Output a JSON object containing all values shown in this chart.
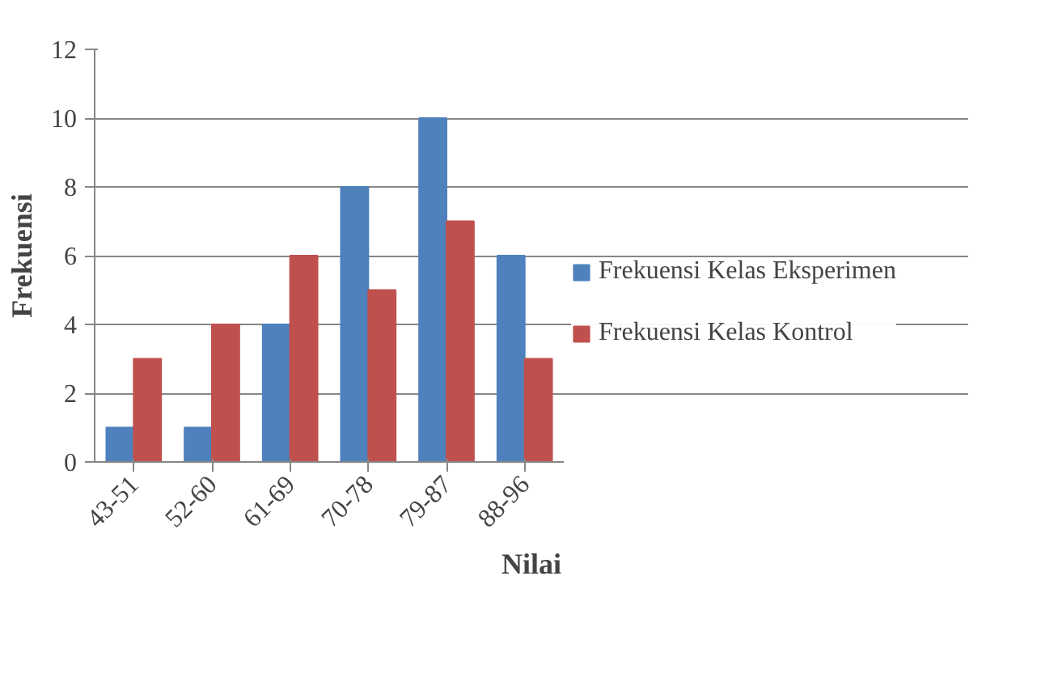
{
  "chart_data": {
    "type": "bar",
    "xlabel": "Nilai",
    "ylabel": "Frekuensi",
    "categories": [
      "43-51",
      "52-60",
      "61-69",
      "70-78",
      "79-87",
      "88-96"
    ],
    "series": [
      {
        "name": "Frekuensi Kelas Eksperimen",
        "color": "#4f81bd",
        "values": [
          1,
          1,
          4,
          8,
          10,
          6
        ]
      },
      {
        "name": "Frekuensi Kelas Kontrol",
        "color": "#c0504d",
        "values": [
          3,
          4,
          6,
          5,
          7,
          3
        ]
      }
    ],
    "ylim": [
      0,
      12
    ],
    "yticks": [
      0,
      2,
      4,
      6,
      8,
      10,
      12
    ],
    "grid": "y",
    "legend": "right"
  }
}
